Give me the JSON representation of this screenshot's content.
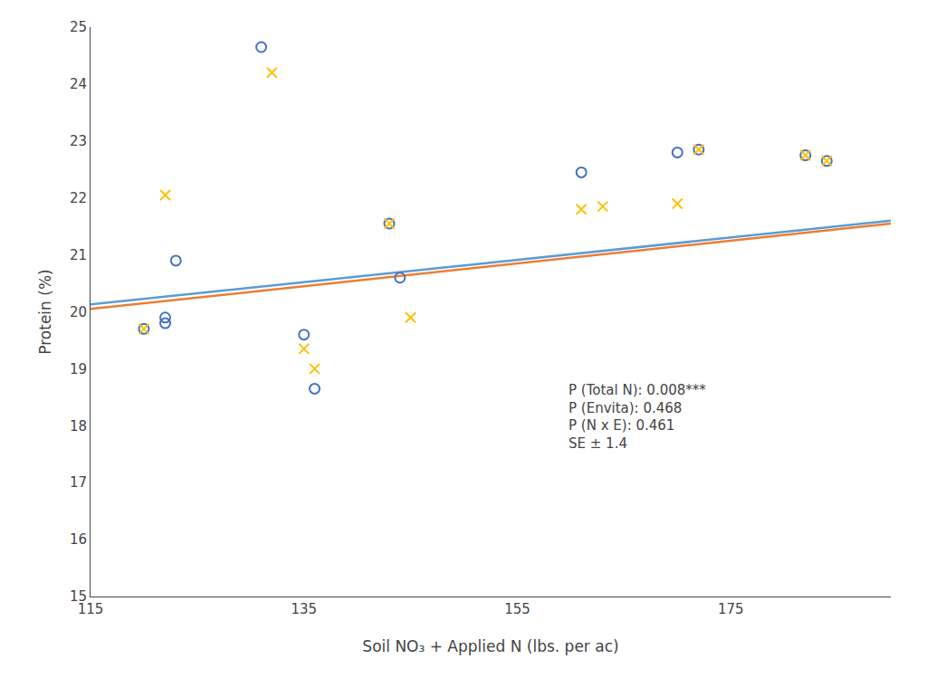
{
  "chart_data": {
    "type": "scatter",
    "xlabel": "Soil NO₃ + Applied N (lbs. per ac)",
    "ylabel": "Protein (%)",
    "xlim": [
      115,
      190
    ],
    "ylim": [
      15,
      25
    ],
    "xticks": [
      115,
      135,
      155,
      175
    ],
    "yticks": [
      15,
      16,
      17,
      18,
      19,
      20,
      21,
      22,
      23,
      24,
      25
    ],
    "grid": false,
    "annotation": "P (Total N): 0.008***\nP (Envita): 0.468\nP (N x E): 0.461\nSE ± 1.4",
    "series": [
      {
        "type": "line",
        "color": "#5B9BD5",
        "line_style": "solid",
        "x": [
          115,
          190
        ],
        "values": [
          20.13,
          21.6
        ]
      },
      {
        "type": "line",
        "color": "#ED7D31",
        "line_style": "solid",
        "x": [
          115,
          190
        ],
        "values": [
          20.05,
          21.55
        ]
      },
      {
        "type": "scatter",
        "color": "#4472C4",
        "marker": "circle-open",
        "x": [
          120,
          122,
          123,
          122,
          131,
          135,
          136,
          143,
          144,
          161,
          170,
          172,
          182,
          184
        ],
        "values": [
          19.7,
          19.9,
          20.9,
          19.8,
          24.65,
          19.6,
          18.65,
          21.55,
          20.6,
          22.45,
          22.8,
          22.85,
          22.75,
          22.65
        ]
      },
      {
        "type": "scatter",
        "color": "#FFC000",
        "marker": "x",
        "x": [
          120,
          122,
          132,
          135,
          136,
          143,
          145,
          161,
          163,
          170,
          172,
          182,
          184
        ],
        "values": [
          19.7,
          22.05,
          24.2,
          19.35,
          19.0,
          21.55,
          19.9,
          21.8,
          21.85,
          21.9,
          22.85,
          22.75,
          22.65
        ]
      }
    ]
  }
}
